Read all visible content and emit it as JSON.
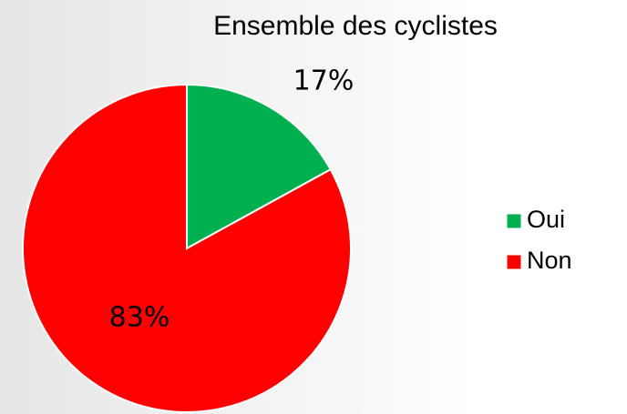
{
  "chart_data": {
    "type": "pie",
    "title": "Ensemble des cyclistes",
    "categories": [
      "Oui",
      "Non"
    ],
    "values": [
      17,
      83
    ],
    "value_labels": [
      "17%",
      "83%"
    ],
    "colors": [
      "#00b050",
      "#ff0000"
    ],
    "legend": "right"
  }
}
